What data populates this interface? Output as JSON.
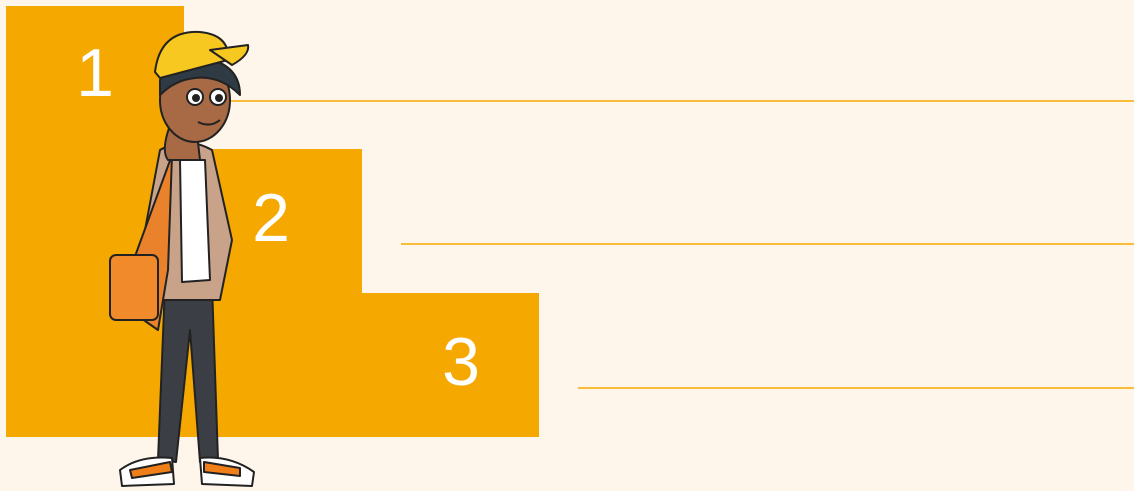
{
  "steps": [
    {
      "label": "1"
    },
    {
      "label": "2"
    },
    {
      "label": "3"
    }
  ]
}
